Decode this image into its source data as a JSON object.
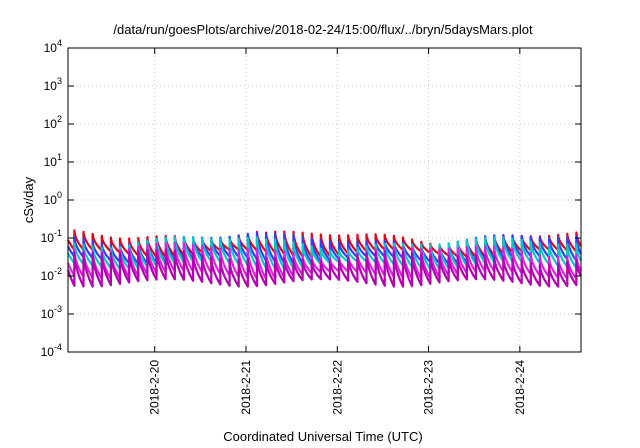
{
  "chart_data": {
    "type": "line",
    "title": "/data/run/goesPlots/archive/2018-02-24/15:00/flux/../bryn/5daysMars.plot",
    "xlabel": "Coordinated Universal Time (UTC)",
    "ylabel": "cSv/day",
    "yscale": "log",
    "ylim": [
      0.0001,
      10000
    ],
    "xlim_days": [
      19.05,
      24.67
    ],
    "grid": true,
    "y_ticks": [
      {
        "value": 0.0001,
        "base": "10",
        "exp": "-4"
      },
      {
        "value": 0.001,
        "base": "10",
        "exp": "-3"
      },
      {
        "value": 0.01,
        "base": "10",
        "exp": "-2"
      },
      {
        "value": 0.1,
        "base": "10",
        "exp": "-1"
      },
      {
        "value": 1,
        "base": "10",
        "exp": "0"
      },
      {
        "value": 10,
        "base": "10",
        "exp": "1"
      },
      {
        "value": 100,
        "base": "10",
        "exp": "2"
      },
      {
        "value": 1000,
        "base": "10",
        "exp": "3"
      },
      {
        "value": 10000,
        "base": "10",
        "exp": "4"
      }
    ],
    "x_ticks": [
      {
        "day": 20,
        "label": "2018-2-20"
      },
      {
        "day": 21,
        "label": "2018-2-21"
      },
      {
        "day": 22,
        "label": "2018-2-22"
      },
      {
        "day": 23,
        "label": "2018-2-23"
      },
      {
        "day": 24,
        "label": "2018-2-24"
      }
    ],
    "sawtooth_period_days": 0.1,
    "series": [
      {
        "color": "#e0001a",
        "peak": 0.12,
        "trough": 0.045
      },
      {
        "color": "#3040ff",
        "peak": 0.1,
        "trough": 0.03
      },
      {
        "color": "#00c8c8",
        "peak": 0.08,
        "trough": 0.022
      },
      {
        "color": "#e020e0",
        "peak": 0.05,
        "trough": 0.012
      },
      {
        "color": "#b000b0",
        "peak": 0.035,
        "trough": 0.0075
      }
    ]
  }
}
